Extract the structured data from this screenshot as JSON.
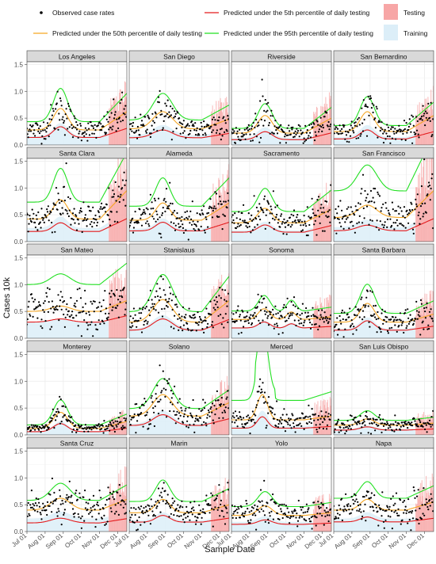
{
  "chart_data": {
    "type": "line",
    "xlabel": "Sample Date",
    "ylabel": "Cases 10k",
    "x_ticks": [
      "Jul 01",
      "Aug 01",
      "Sep 01",
      "Oct 01",
      "Nov 01",
      "Dec 01"
    ],
    "y_ticks": [
      0.0,
      0.5,
      1.0,
      1.5
    ],
    "ylim": [
      0,
      1.55
    ],
    "x_range_months": [
      0,
      5.5
    ],
    "grid": true,
    "legend": {
      "position": "top",
      "observed": "Observed case rates",
      "p5": "Predicted under the 5th percentile of daily testing",
      "p50": "Predicted under the 50th percentile of daily testing",
      "p95": "Predicted under the 95th percentile of daily testing",
      "testing": "Testing",
      "training": "Training"
    },
    "colors": {
      "p5": "#e41a1c",
      "p50": "#f5a623",
      "p95": "#22e022",
      "testing": "#f7a6a6",
      "training": "#dceef8",
      "points": "#000000",
      "strip": "#d9d9d9",
      "grid": "#ebebeb"
    },
    "panels": [
      {
        "name": "Los Angeles",
        "shape": "single",
        "peak": 0.68,
        "base": 0.28,
        "p95f": 1.55,
        "p5f": 0.5,
        "end": 0.62
      },
      {
        "name": "San Diego",
        "shape": "broad",
        "peak": 0.62,
        "base": 0.3,
        "p95f": 1.55,
        "p5f": 0.45,
        "end": 0.48
      },
      {
        "name": "Riverside",
        "shape": "single",
        "peak": 0.55,
        "base": 0.22,
        "p95f": 1.4,
        "p5f": 0.45,
        "end": 0.5
      },
      {
        "name": "San Bernardino",
        "shape": "single",
        "peak": 0.62,
        "base": 0.25,
        "p95f": 1.45,
        "p5f": 0.45,
        "end": 0.55
      },
      {
        "name": "Santa Clara",
        "shape": "single",
        "peak": 0.78,
        "base": 0.42,
        "p95f": 1.75,
        "p5f": 0.45,
        "end": 0.95
      },
      {
        "name": "Alameda",
        "shape": "single",
        "peak": 0.72,
        "base": 0.4,
        "p95f": 1.65,
        "p5f": 0.5,
        "end": 0.72
      },
      {
        "name": "Sacramento",
        "shape": "single",
        "peak": 0.62,
        "base": 0.35,
        "p95f": 1.6,
        "p5f": 0.5,
        "end": 0.6
      },
      {
        "name": "San Francisco",
        "shape": "broad",
        "peak": 0.68,
        "base": 0.45,
        "p95f": 2.1,
        "p5f": 0.45,
        "end": 0.95
      },
      {
        "name": "San Mateo",
        "shape": "broad",
        "peak": 0.6,
        "base": 0.5,
        "p95f": 2.0,
        "p5f": 0.6,
        "end": 0.7
      },
      {
        "name": "Stanislaus",
        "shape": "broad",
        "peak": 0.72,
        "base": 0.3,
        "p95f": 1.65,
        "p5f": 0.5,
        "end": 0.7
      },
      {
        "name": "Sonoma",
        "shape": "double",
        "peak": 0.55,
        "base": 0.35,
        "p95f": 1.45,
        "p5f": 0.55,
        "end": 0.4
      },
      {
        "name": "Santa Barbara",
        "shape": "single",
        "peak": 0.65,
        "base": 0.3,
        "p95f": 1.55,
        "p5f": 0.5,
        "end": 0.45
      },
      {
        "name": "Monterey",
        "shape": "single",
        "peak": 0.42,
        "base": 0.12,
        "p95f": 1.55,
        "p5f": 0.5,
        "end": 0.25
      },
      {
        "name": "Solano",
        "shape": "broad",
        "peak": 0.75,
        "base": 0.35,
        "p95f": 1.4,
        "p5f": 0.5,
        "end": 0.6
      },
      {
        "name": "Merced",
        "shape": "spike",
        "peak": 0.75,
        "base": 0.28,
        "p95f": 2.3,
        "p5f": 0.45,
        "end": 0.35
      },
      {
        "name": "San Luis Obispo",
        "shape": "single",
        "peak": 0.3,
        "base": 0.18,
        "p95f": 1.5,
        "p5f": 0.5,
        "end": 0.22
      },
      {
        "name": "Santa Cruz",
        "shape": "broad",
        "peak": 0.62,
        "base": 0.4,
        "p95f": 1.45,
        "p5f": 0.4,
        "end": 0.6
      },
      {
        "name": "Marin",
        "shape": "single",
        "peak": 0.6,
        "base": 0.35,
        "p95f": 1.6,
        "p5f": 0.5,
        "end": 0.5
      },
      {
        "name": "Yolo",
        "shape": "single",
        "peak": 0.48,
        "base": 0.3,
        "p95f": 1.55,
        "p5f": 0.45,
        "end": 0.35
      },
      {
        "name": "Napa",
        "shape": "single",
        "peak": 0.6,
        "base": 0.4,
        "p95f": 1.55,
        "p5f": 0.45,
        "end": 0.55
      }
    ],
    "testing_start_month": 4.5
  }
}
